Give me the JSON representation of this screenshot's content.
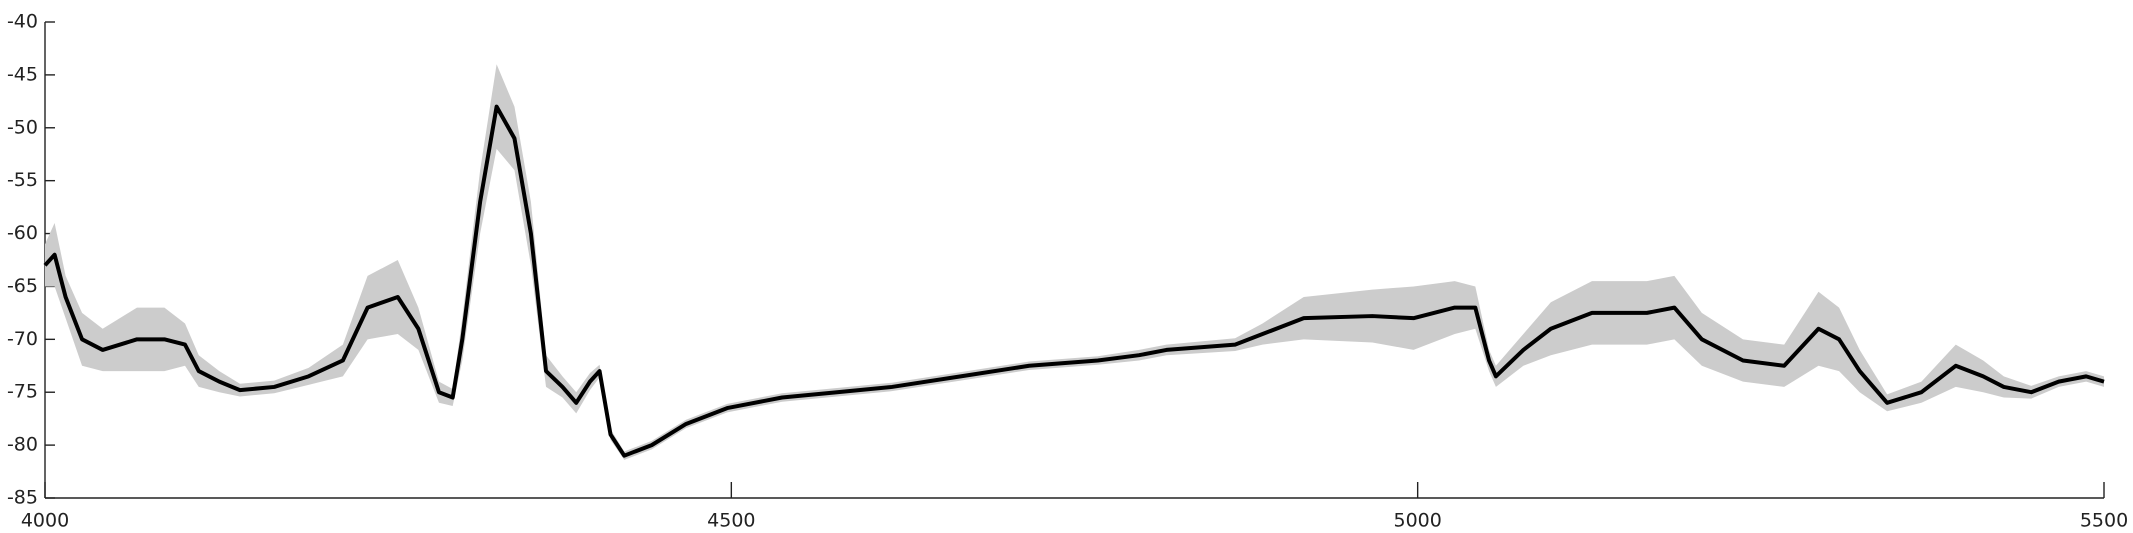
{
  "chart_data": {
    "type": "line",
    "x": [
      4000,
      4007,
      4015,
      4027,
      4042,
      4067,
      4087,
      4102,
      4112,
      4127,
      4142,
      4167,
      4192,
      4217,
      4235,
      4257,
      4272,
      4287,
      4297,
      4304,
      4317,
      4329,
      4342,
      4354,
      4365,
      4377,
      4387,
      4397,
      4404,
      4412,
      4422,
      4442,
      4467,
      4497,
      4537,
      4577,
      4617,
      4667,
      4717,
      4767,
      4797,
      4817,
      4867,
      4887,
      4917,
      4967,
      4997,
      5027,
      5042,
      5052,
      5057,
      5077,
      5097,
      5127,
      5167,
      5187,
      5207,
      5237,
      5267,
      5292,
      5307,
      5322,
      5342,
      5367,
      5392,
      5412,
      5427,
      5447,
      5467,
      5487,
      5500
    ],
    "series": [
      {
        "color": "#000000",
        "values": [
          -63,
          -62,
          -66,
          -70,
          -71,
          -70,
          -70,
          -70.5,
          -73,
          -74,
          -74.8,
          -74.5,
          -73.5,
          -72,
          -67,
          -66,
          -69,
          -75,
          -75.5,
          -70,
          -57,
          -48,
          -51,
          -60,
          -73,
          -74.5,
          -76,
          -74,
          -73,
          -79,
          -81,
          -80,
          -78,
          -76.5,
          -75.5,
          -75,
          -74.5,
          -73.5,
          -72.5,
          -72,
          -71.5,
          -71,
          -70.5,
          -69.5,
          -68,
          -67.8,
          -68,
          -67,
          -67,
          -72,
          -73.5,
          -71,
          -69,
          -67.5,
          -67.5,
          -67,
          -70,
          -72,
          -72.5,
          -69,
          -70,
          -73,
          -76,
          -75,
          -72.5,
          -73.5,
          -74.5,
          -75,
          -74,
          -73.5,
          -74
        ]
      }
    ],
    "band": {
      "color": "#cccccc",
      "lower": [
        -65,
        -65,
        -68,
        -72.5,
        -73,
        -73,
        -73,
        -72.5,
        -74.5,
        -75,
        -75.4,
        -75.1,
        -74.3,
        -73.5,
        -70,
        -69.5,
        -71,
        -76,
        -76.3,
        -72,
        -60,
        -52,
        -54,
        -63,
        -74.5,
        -75.5,
        -77,
        -74.8,
        -73.6,
        -79.5,
        -81.4,
        -80.4,
        -78.4,
        -76.9,
        -75.9,
        -75.4,
        -74.9,
        -73.9,
        -72.9,
        -72.4,
        -72,
        -71.5,
        -71.1,
        -70.5,
        -70,
        -70.3,
        -71,
        -69.5,
        -69,
        -73,
        -74.5,
        -72.5,
        -71.5,
        -70.5,
        -70.5,
        -70,
        -72.5,
        -74,
        -74.5,
        -72.5,
        -73,
        -75,
        -76.8,
        -76,
        -74.5,
        -75,
        -75.5,
        -75.6,
        -74.5,
        -74,
        -74.5
      ],
      "upper": [
        -61,
        -59,
        -64,
        -67.5,
        -69,
        -67,
        -67,
        -68.5,
        -71.5,
        -73,
        -74.2,
        -73.9,
        -72.7,
        -70.5,
        -64,
        -62.5,
        -67,
        -74,
        -74.7,
        -68,
        -54,
        -44,
        -48,
        -57,
        -71.5,
        -73.5,
        -75,
        -73.2,
        -72.4,
        -78.5,
        -80.6,
        -79.6,
        -77.6,
        -76.1,
        -75.1,
        -74.6,
        -74.1,
        -73.1,
        -72.1,
        -71.6,
        -71,
        -70.5,
        -69.9,
        -68.5,
        -66,
        -65.3,
        -65,
        -64.5,
        -65,
        -71,
        -72.5,
        -69.5,
        -66.5,
        -64.5,
        -64.5,
        -64,
        -67.5,
        -70,
        -70.5,
        -65.5,
        -67,
        -71,
        -75.2,
        -74,
        -70.5,
        -72,
        -73.5,
        -74.4,
        -73.5,
        -73,
        -73.5
      ]
    },
    "xlim": [
      4000,
      5500
    ],
    "xticks": [
      4000,
      4500,
      5000,
      5500
    ],
    "ylim": [
      -85,
      -40
    ],
    "yticks": [
      -85,
      -80,
      -75,
      -70,
      -65,
      -60,
      -55,
      -50,
      -45,
      -40
    ]
  }
}
